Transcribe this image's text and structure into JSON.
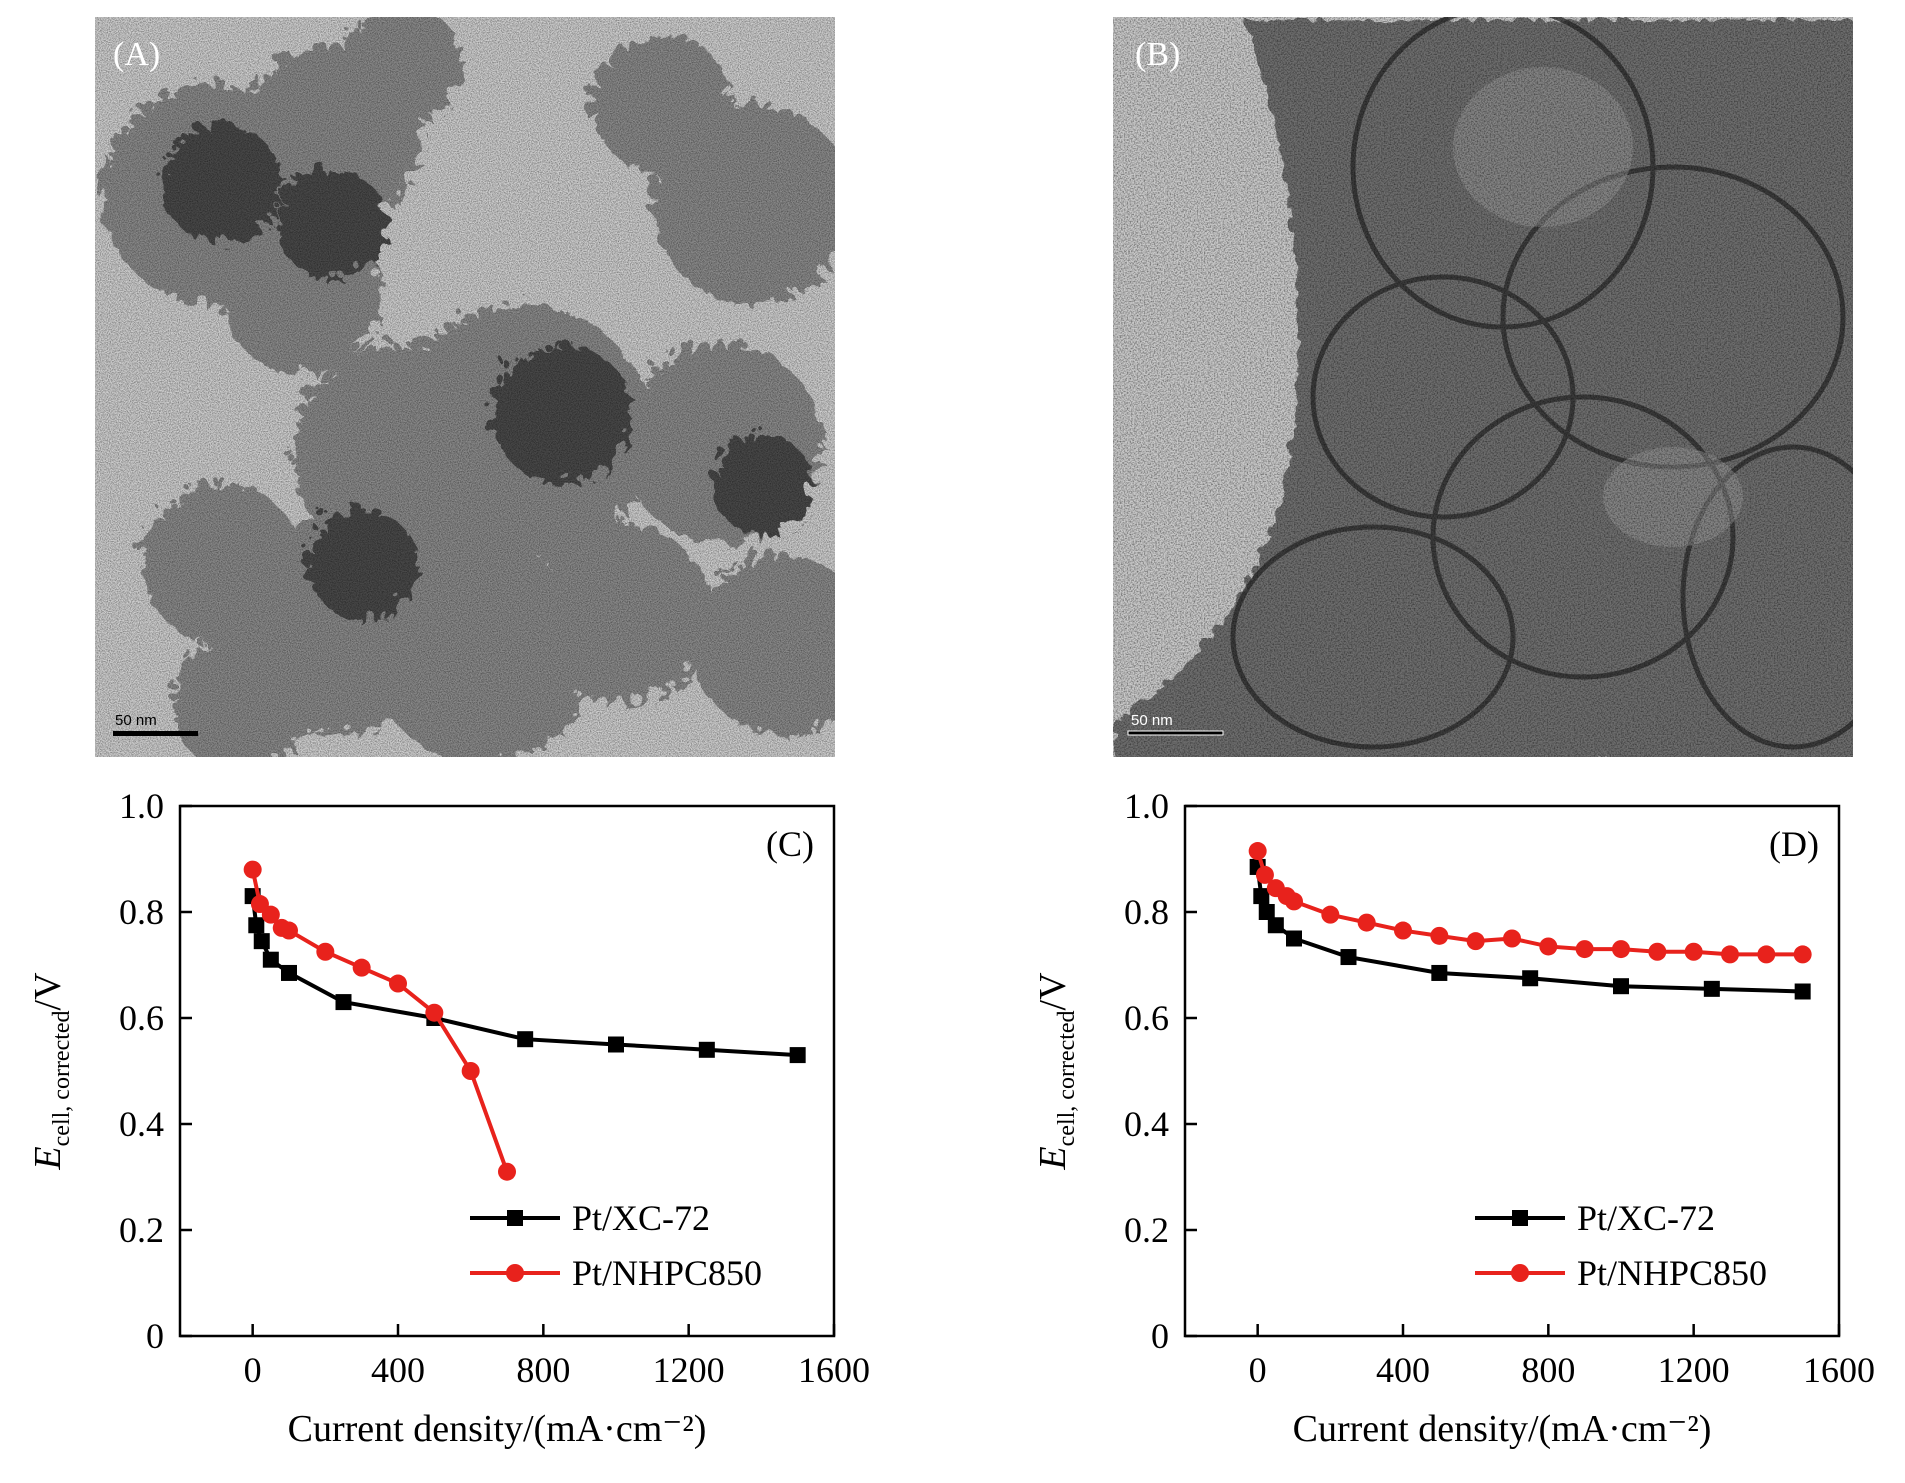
{
  "panels": {
    "A": {
      "label": "(A)",
      "scalebar": "50 nm"
    },
    "B": {
      "label": "(B)",
      "scalebar": "50 nm"
    }
  },
  "chart_data": [
    {
      "type": "line",
      "panel_label": "(C)",
      "xlabel": "Current density/(mA·cm⁻²)",
      "ylabel_main": "E",
      "ylabel_sub": "cell, corrected",
      "ylabel_unit": "/V",
      "xlim": [
        -200,
        1600
      ],
      "ylim": [
        0,
        1.0
      ],
      "xticks": [
        "0",
        "400",
        "800",
        "1200",
        "1600"
      ],
      "yticks": [
        "0",
        "0.2",
        "0.4",
        "0.6",
        "0.8",
        "1.0"
      ],
      "legend_position": "bottom-right",
      "series": [
        {
          "name": "Pt/XC-72",
          "color": "#000000",
          "marker": "square",
          "x": [
            0,
            10,
            25,
            50,
            100,
            250,
            500,
            750,
            1000,
            1250,
            1500
          ],
          "y": [
            0.83,
            0.775,
            0.745,
            0.71,
            0.685,
            0.63,
            0.6,
            0.56,
            0.55,
            0.54,
            0.53
          ]
        },
        {
          "name": "Pt/NHPC850",
          "color": "#e8221c",
          "marker": "circle",
          "x": [
            0,
            20,
            50,
            80,
            100,
            200,
            300,
            400,
            500,
            600,
            700
          ],
          "y": [
            0.88,
            0.815,
            0.795,
            0.77,
            0.765,
            0.725,
            0.695,
            0.665,
            0.61,
            0.5,
            0.31
          ]
        }
      ]
    },
    {
      "type": "line",
      "panel_label": "(D)",
      "xlabel": "Current density/(mA·cm⁻²)",
      "ylabel_main": "E",
      "ylabel_sub": "cell, corrected",
      "ylabel_unit": "/V",
      "xlim": [
        -200,
        1600
      ],
      "ylim": [
        0,
        1.0
      ],
      "xticks": [
        "0",
        "400",
        "800",
        "1200",
        "1600"
      ],
      "yticks": [
        "0",
        "0.2",
        "0.4",
        "0.6",
        "0.8",
        "1.0"
      ],
      "legend_position": "bottom-right",
      "series": [
        {
          "name": "Pt/XC-72",
          "color": "#000000",
          "marker": "square",
          "x": [
            0,
            10,
            25,
            50,
            100,
            250,
            500,
            750,
            1000,
            1250,
            1500
          ],
          "y": [
            0.885,
            0.83,
            0.8,
            0.775,
            0.75,
            0.715,
            0.685,
            0.675,
            0.66,
            0.655,
            0.65
          ]
        },
        {
          "name": "Pt/NHPC850",
          "color": "#e8221c",
          "marker": "circle",
          "x": [
            0,
            20,
            50,
            80,
            100,
            200,
            300,
            400,
            500,
            600,
            700,
            800,
            900,
            1000,
            1100,
            1200,
            1300,
            1400,
            1500
          ],
          "y": [
            0.915,
            0.87,
            0.845,
            0.83,
            0.82,
            0.795,
            0.78,
            0.765,
            0.755,
            0.745,
            0.75,
            0.735,
            0.73,
            0.73,
            0.725,
            0.725,
            0.72,
            0.72,
            0.72
          ]
        }
      ]
    }
  ]
}
